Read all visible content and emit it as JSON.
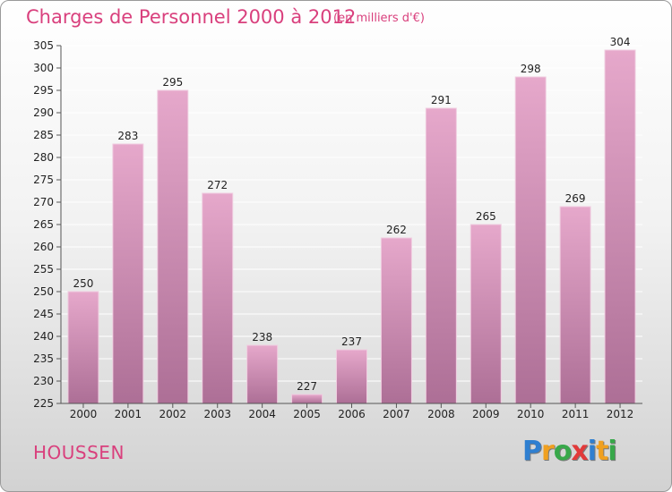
{
  "header": {
    "title": "Charges de Personnel 2000 à 2012",
    "subtitle": "(en milliers d'€)"
  },
  "footer": {
    "city": "HOUSSEN",
    "logo_text": "Proxiti"
  },
  "colors": {
    "title": "#d9407d",
    "bar_top": "#e6a8cb",
    "bar_bottom": "#ad6f96",
    "grid": "#ffffff"
  },
  "chart_data": {
    "type": "bar",
    "title": "Charges de Personnel 2000 à 2012",
    "subtitle": "(en milliers d'€)",
    "xlabel": "",
    "ylabel": "",
    "categories": [
      "2000",
      "2001",
      "2002",
      "2003",
      "2004",
      "2005",
      "2006",
      "2007",
      "2008",
      "2009",
      "2010",
      "2011",
      "2012"
    ],
    "values": [
      250,
      283,
      295,
      272,
      238,
      227,
      237,
      262,
      291,
      265,
      298,
      269,
      304
    ],
    "ylim": [
      225,
      305
    ],
    "yticks": [
      225,
      230,
      235,
      240,
      245,
      250,
      255,
      260,
      265,
      270,
      275,
      280,
      285,
      290,
      295,
      300,
      305
    ],
    "grid": true,
    "legend": "none"
  }
}
